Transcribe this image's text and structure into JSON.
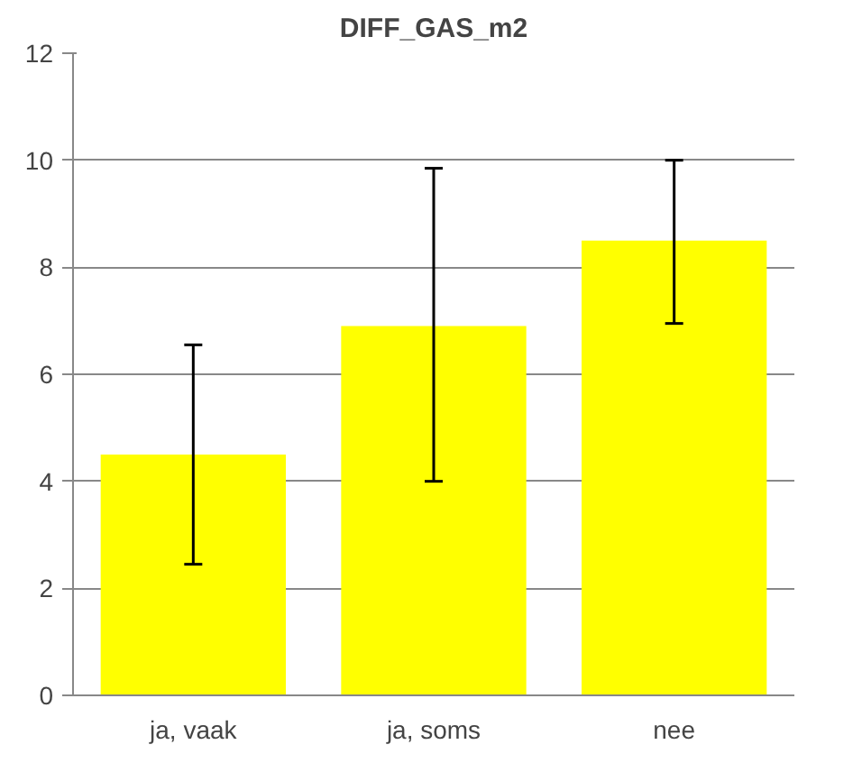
{
  "chart_data": {
    "type": "bar",
    "title": "DIFF_GAS_m2",
    "categories": [
      "ja, vaak",
      "ja, soms",
      "nee"
    ],
    "values": [
      4.5,
      6.9,
      8.5
    ],
    "errors": [
      [
        2.45,
        6.55
      ],
      [
        4.0,
        9.85
      ],
      [
        6.95,
        10.0
      ]
    ],
    "color": "#ffff00",
    "ylim": [
      0,
      12
    ],
    "yticks": [
      0,
      2,
      4,
      6,
      8,
      10,
      12
    ],
    "grid": "y"
  }
}
